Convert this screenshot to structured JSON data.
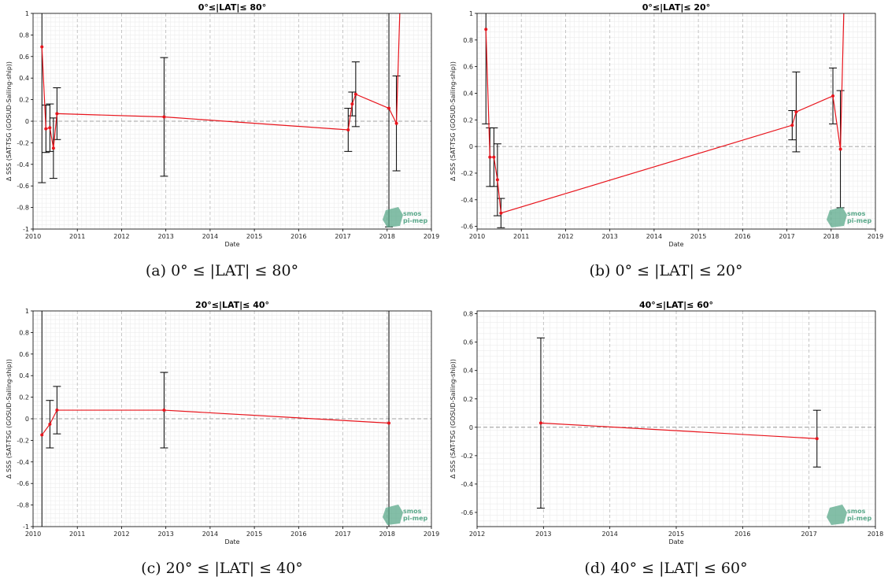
{
  "figure": {
    "x_axis_label": "Date",
    "y_axis_label": "Δ SSS (SAT-TSG (GOSUD-Sailing-ship))",
    "logo": {
      "line1": "smos",
      "line2": "pi-mep"
    },
    "colors": {
      "series": "#e8141c",
      "errorbar": "#000000",
      "grid_major": "#b8b8b8",
      "grid_minor": "#ececec",
      "zero_line": "#888888",
      "logo": "#5aa88a"
    }
  },
  "captions": [
    "(a) 0° ≤ |LAT| ≤ 80°",
    "(b) 0° ≤ |LAT| ≤ 20°",
    "(c) 20° ≤ |LAT| ≤ 40°",
    "(d) 40° ≤ |LAT| ≤ 60°"
  ],
  "chart_data": [
    {
      "type": "line",
      "title": "0°≤|LAT|≤ 80°",
      "xlabel": "Date",
      "ylabel": "Δ SSS (SAT-TSG (GOSUD-Sailing-ship))",
      "xlim": [
        2010,
        2019
      ],
      "ylim": [
        -1,
        1
      ],
      "xticks": [
        2010,
        2011,
        2012,
        2013,
        2014,
        2015,
        2016,
        2017,
        2018,
        2019
      ],
      "yticks": [
        -1,
        -0.8,
        -0.6,
        -0.4,
        -0.2,
        0,
        0.2,
        0.4,
        0.6,
        0.8,
        1
      ],
      "grid": true,
      "series": [
        {
          "x": [
            2010.2,
            2010.29,
            2010.38,
            2010.46,
            2010.54,
            2012.96,
            2017.12,
            2017.21,
            2017.29,
            2018.04,
            2018.21,
            2018.3
          ],
          "y": [
            0.69,
            -0.07,
            -0.06,
            -0.25,
            0.07,
            0.04,
            -0.08,
            0.16,
            0.25,
            0.12,
            -0.02,
            1.2
          ],
          "err": [
            1.26,
            0.22,
            0.22,
            0.28,
            0.24,
            0.55,
            0.2,
            0.11,
            0.3,
            1.1,
            0.44,
            null
          ]
        }
      ]
    },
    {
      "type": "line",
      "title": "0°≤|LAT|≤ 20°",
      "xlabel": "Date",
      "ylabel": "Δ SSS (SAT-TSG (GOSUD-Sailing-ship))",
      "xlim": [
        2010,
        2019
      ],
      "ylim": [
        -0.62,
        1
      ],
      "xticks": [
        2010,
        2011,
        2012,
        2013,
        2014,
        2015,
        2016,
        2017,
        2018,
        2019
      ],
      "yticks": [
        -0.6,
        -0.4,
        -0.2,
        0,
        0.2,
        0.4,
        0.6,
        0.8,
        1
      ],
      "grid": true,
      "series": [
        {
          "x": [
            2010.2,
            2010.29,
            2010.38,
            2010.46,
            2010.54,
            2017.12,
            2017.21,
            2018.04,
            2018.21,
            2018.3
          ],
          "y": [
            0.88,
            -0.08,
            -0.08,
            -0.25,
            -0.5,
            0.16,
            0.26,
            0.38,
            -0.02,
            1.2
          ],
          "err": [
            0.71,
            0.22,
            0.22,
            0.27,
            0.11,
            0.11,
            0.3,
            0.21,
            0.44,
            null
          ]
        }
      ]
    },
    {
      "type": "line",
      "title": "20°≤|LAT|≤ 40°",
      "xlabel": "Date",
      "ylabel": "Δ SSS (SAT-TSG (GOSUD-Sailing-ship))",
      "xlim": [
        2010,
        2019
      ],
      "ylim": [
        -1,
        1
      ],
      "xticks": [
        2010,
        2011,
        2012,
        2013,
        2014,
        2015,
        2016,
        2017,
        2018,
        2019
      ],
      "yticks": [
        -1,
        -0.8,
        -0.6,
        -0.4,
        -0.2,
        0,
        0.2,
        0.4,
        0.6,
        0.8,
        1
      ],
      "grid": true,
      "series": [
        {
          "x": [
            2010.2,
            2010.38,
            2010.54,
            2012.96,
            2018.04
          ],
          "y": [
            -0.15,
            -0.05,
            0.08,
            0.08,
            -0.04
          ],
          "err": [
            1.3,
            0.22,
            0.22,
            0.35,
            1.3
          ]
        }
      ]
    },
    {
      "type": "line",
      "title": "40°≤|LAT|≤ 60°",
      "xlabel": "Date",
      "ylabel": "Δ SSS (SAT-TSG (GOSUD-Sailing-ship))",
      "xlim": [
        2012,
        2018
      ],
      "ylim": [
        -0.7,
        0.82
      ],
      "xticks": [
        2012,
        2013,
        2014,
        2015,
        2016,
        2017,
        2018
      ],
      "yticks": [
        -0.6,
        -0.4,
        -0.2,
        0,
        0.2,
        0.4,
        0.6,
        0.8
      ],
      "grid": true,
      "series": [
        {
          "x": [
            2012.96,
            2017.12
          ],
          "y": [
            0.03,
            -0.08
          ],
          "err": [
            0.6,
            0.2
          ]
        }
      ]
    }
  ]
}
